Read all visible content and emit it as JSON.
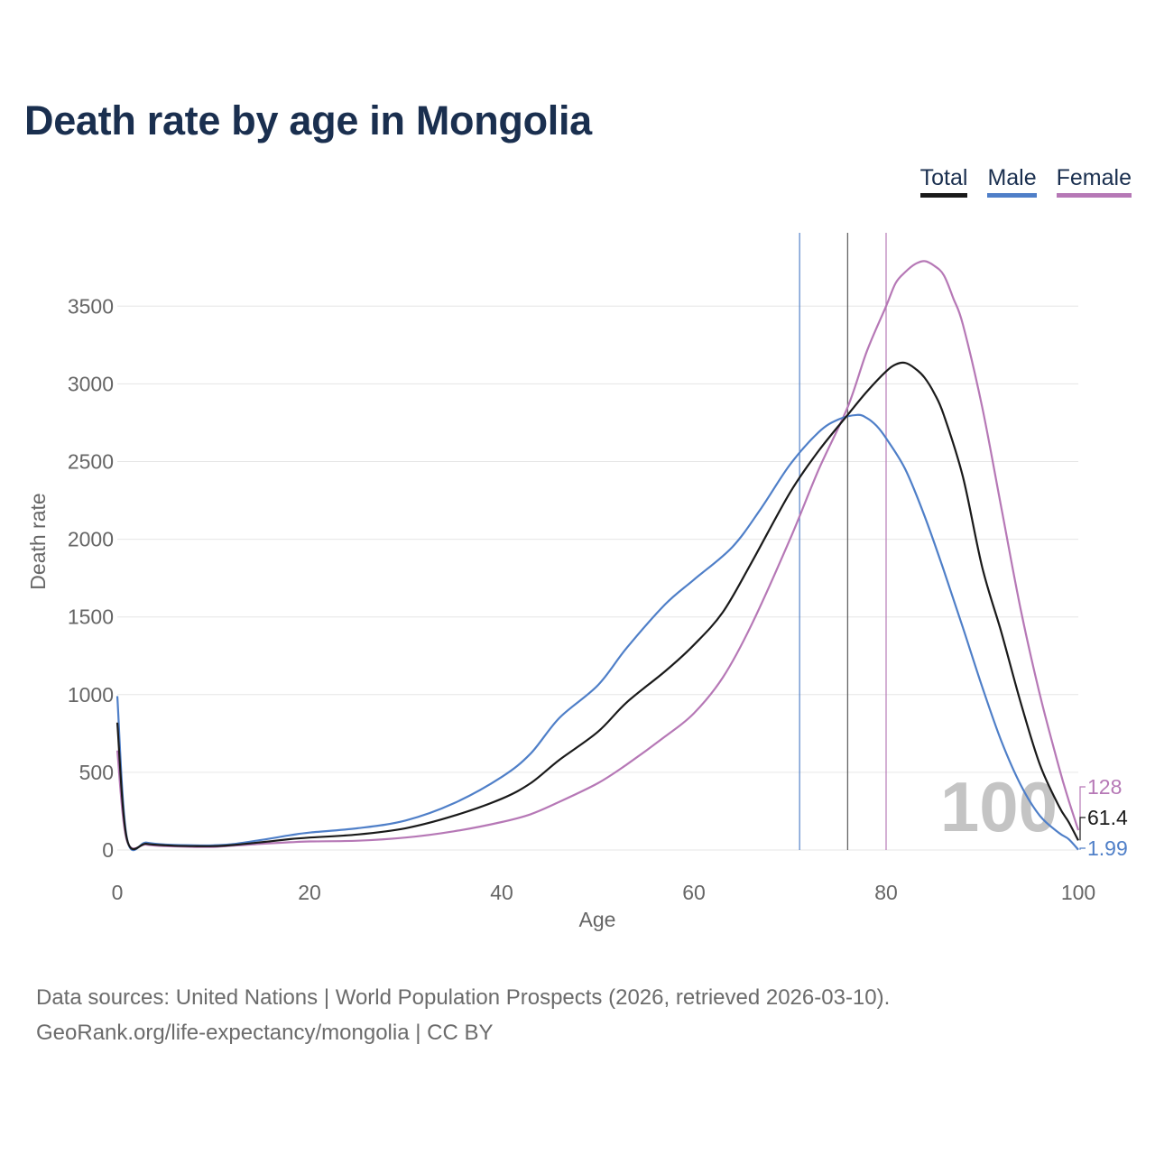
{
  "page_title": "Death rate by age in Mongolia",
  "legend": {
    "total": "Total",
    "male": "Male",
    "female": "Female"
  },
  "footer": {
    "line1": "Data sources: United Nations | World Population Prospects (2026, retrieved 2026-03-10).",
    "line2": "GeoRank.org/life-expectancy/mongolia | CC BY"
  },
  "colors": {
    "total": "#1a1a1a",
    "male": "#4f7fc8",
    "female": "#b678b6",
    "grid": "#e6e6e6",
    "axis_text": "#666666"
  },
  "chart_data": {
    "type": "line",
    "title": "Death rate by age in Mongolia",
    "xlabel": "Age",
    "ylabel": "Death rate",
    "xlim": [
      0,
      100
    ],
    "ylim": [
      0,
      3800
    ],
    "x_ticks": [
      0,
      20,
      40,
      60,
      80,
      100
    ],
    "y_ticks": [
      0,
      500,
      1000,
      1500,
      2000,
      2500,
      3000,
      3500
    ],
    "grid": true,
    "year_annotation": "100",
    "end_labels": {
      "female": "128",
      "total": "61.4",
      "male": "1.99"
    },
    "reference_lines": [
      {
        "series": "Male",
        "x": 71
      },
      {
        "series": "Total",
        "x": 76
      },
      {
        "series": "Female",
        "x": 80
      }
    ],
    "series": [
      {
        "name": "Total",
        "key": "total",
        "x": [
          0,
          1,
          3,
          5,
          8,
          10,
          12,
          15,
          18,
          20,
          25,
          30,
          35,
          40,
          43,
          46,
          50,
          53,
          57,
          60,
          63,
          66,
          70,
          73,
          76,
          78,
          80,
          81,
          82,
          83,
          84,
          85,
          86,
          88,
          90,
          92,
          94,
          96,
          98,
          99,
          100
        ],
        "values": [
          820,
          70,
          40,
          30,
          25,
          25,
          32,
          50,
          70,
          80,
          100,
          140,
          220,
          330,
          430,
          580,
          760,
          950,
          1150,
          1320,
          1530,
          1850,
          2300,
          2570,
          2800,
          2950,
          3080,
          3125,
          3135,
          3100,
          3040,
          2940,
          2800,
          2400,
          1820,
          1400,
          950,
          550,
          280,
          180,
          61.4
        ]
      },
      {
        "name": "Male",
        "key": "male",
        "x": [
          0,
          1,
          3,
          5,
          8,
          10,
          12,
          15,
          18,
          20,
          25,
          30,
          35,
          40,
          43,
          46,
          50,
          53,
          57,
          60,
          64,
          67,
          70,
          73,
          75,
          77,
          78,
          79,
          80,
          82,
          84,
          86,
          88,
          90,
          92,
          94,
          96,
          98,
          99,
          100
        ],
        "values": [
          990,
          75,
          48,
          35,
          30,
          30,
          38,
          65,
          95,
          112,
          140,
          190,
          300,
          470,
          620,
          850,
          1060,
          1300,
          1580,
          1740,
          1950,
          2200,
          2480,
          2690,
          2770,
          2800,
          2780,
          2730,
          2650,
          2450,
          2150,
          1800,
          1430,
          1050,
          700,
          420,
          220,
          110,
          70,
          1.99
        ]
      },
      {
        "name": "Female",
        "key": "female",
        "x": [
          0,
          1,
          3,
          5,
          8,
          10,
          12,
          15,
          18,
          20,
          25,
          30,
          35,
          40,
          43,
          46,
          50,
          53,
          57,
          60,
          63,
          66,
          70,
          73,
          76,
          78,
          80,
          81,
          82,
          83,
          84,
          85,
          86,
          87,
          88,
          90,
          92,
          94,
          96,
          98,
          99,
          100
        ],
        "values": [
          640,
          60,
          35,
          25,
          20,
          20,
          28,
          40,
          50,
          55,
          60,
          80,
          120,
          180,
          230,
          310,
          430,
          550,
          730,
          880,
          1110,
          1450,
          2000,
          2450,
          2850,
          3210,
          3500,
          3650,
          3720,
          3770,
          3790,
          3760,
          3700,
          3550,
          3380,
          2850,
          2200,
          1550,
          1000,
          530,
          320,
          128
        ]
      }
    ]
  }
}
